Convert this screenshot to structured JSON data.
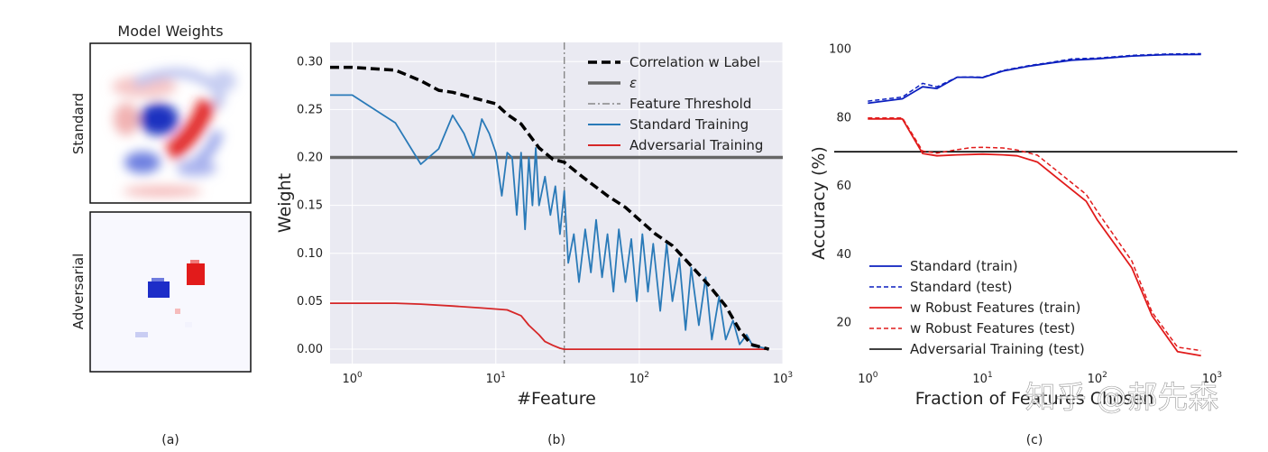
{
  "panel_a": {
    "title": "Model Weights",
    "row_labels": [
      "Standard",
      "Adversarial"
    ],
    "caption": "(a)"
  },
  "panel_b": {
    "caption": "(b)"
  },
  "panel_c": {
    "caption": "(c)"
  },
  "watermark": "知乎 @郝先森",
  "chart_data": [
    {
      "type": "line",
      "title": "",
      "xlabel": "#Feature",
      "ylabel": "Weight",
      "xscale": "log",
      "xlim": [
        0.7,
        1000
      ],
      "ylim": [
        -0.015,
        0.32
      ],
      "xticks": [
        {
          "v": 1,
          "base": "10",
          "exp": "0"
        },
        {
          "v": 10,
          "base": "10",
          "exp": "1"
        },
        {
          "v": 100,
          "base": "10",
          "exp": "2"
        },
        {
          "v": 1000,
          "base": "10",
          "exp": "3"
        }
      ],
      "yticks": [
        0.0,
        0.05,
        0.1,
        0.15,
        0.2,
        0.25,
        0.3
      ],
      "ytick_labels": [
        "0.00",
        "0.05",
        "0.10",
        "0.15",
        "0.20",
        "0.25",
        "0.30"
      ],
      "grid": true,
      "legend_position": "top-right",
      "hline": {
        "name": "ε",
        "y": 0.2,
        "color": "#666666"
      },
      "vline": {
        "name": "Feature Threshold",
        "x": 30,
        "color": "#888888"
      },
      "series": [
        {
          "name": "Correlation w Label",
          "color": "#000000",
          "style": "dashed-thick",
          "x": [
            0.7,
            1,
            2,
            3,
            4,
            5,
            7,
            10,
            12,
            15,
            20,
            25,
            30,
            40,
            60,
            80,
            100,
            130,
            170,
            220,
            300,
            400,
            500,
            600,
            800
          ],
          "y": [
            0.294,
            0.294,
            0.291,
            0.28,
            0.27,
            0.268,
            0.262,
            0.256,
            0.245,
            0.235,
            0.21,
            0.198,
            0.195,
            0.18,
            0.16,
            0.148,
            0.135,
            0.12,
            0.108,
            0.09,
            0.068,
            0.045,
            0.02,
            0.005,
            0.0
          ]
        },
        {
          "name": "Standard Training",
          "color": "#2a7ab8",
          "style": "solid",
          "x": [
            0.7,
            1,
            2,
            3,
            4,
            5,
            6,
            7,
            8,
            9,
            10,
            11,
            12,
            13,
            14,
            15,
            16,
            17,
            18,
            19,
            20,
            22,
            24,
            26,
            28,
            30,
            32,
            35,
            38,
            42,
            46,
            50,
            55,
            60,
            66,
            72,
            80,
            88,
            96,
            105,
            115,
            125,
            140,
            155,
            170,
            190,
            210,
            230,
            260,
            290,
            320,
            360,
            400,
            450,
            500,
            560,
            620,
            700,
            800
          ],
          "y": [
            0.265,
            0.265,
            0.236,
            0.193,
            0.209,
            0.244,
            0.225,
            0.2,
            0.24,
            0.225,
            0.205,
            0.16,
            0.205,
            0.2,
            0.14,
            0.205,
            0.125,
            0.2,
            0.15,
            0.21,
            0.15,
            0.18,
            0.14,
            0.17,
            0.12,
            0.165,
            0.09,
            0.12,
            0.07,
            0.125,
            0.08,
            0.135,
            0.075,
            0.12,
            0.06,
            0.125,
            0.07,
            0.115,
            0.05,
            0.12,
            0.06,
            0.11,
            0.04,
            0.11,
            0.05,
            0.095,
            0.02,
            0.085,
            0.025,
            0.075,
            0.01,
            0.055,
            0.01,
            0.03,
            0.005,
            0.015,
            0.003,
            0.002,
            0.0
          ]
        },
        {
          "name": "Adversarial Training",
          "color": "#d62728",
          "style": "solid",
          "x": [
            0.7,
            1,
            2,
            3,
            5,
            8,
            12,
            15,
            17,
            20,
            22,
            25,
            28,
            30,
            40,
            100,
            300,
            800
          ],
          "y": [
            0.048,
            0.048,
            0.048,
            0.047,
            0.045,
            0.043,
            0.041,
            0.035,
            0.025,
            0.015,
            0.008,
            0.004,
            0.001,
            0.0,
            0.0,
            0.0,
            0.0,
            0.0
          ]
        }
      ]
    },
    {
      "type": "line",
      "title": "",
      "xlabel": "Fraction of Features Chosen",
      "ylabel": "Accuracy (%)",
      "xscale": "log",
      "xlim": [
        0.8,
        1000
      ],
      "ylim": [
        8,
        102
      ],
      "xticks": [
        {
          "v": 1,
          "base": "10",
          "exp": "0"
        },
        {
          "v": 10,
          "base": "10",
          "exp": "1"
        },
        {
          "v": 100,
          "base": "10",
          "exp": "2"
        },
        {
          "v": 1000,
          "base": "10",
          "exp": "3"
        }
      ],
      "yticks": [
        20,
        40,
        60,
        80,
        100
      ],
      "ytick_labels": [
        "20",
        "40",
        "60",
        "80",
        "100"
      ],
      "grid": false,
      "legend_position": "bottom-left",
      "series": [
        {
          "name": "Standard (train)",
          "color": "#0b1fbf",
          "style": "solid",
          "x": [
            1,
            2,
            3,
            4,
            6,
            8,
            10,
            15,
            25,
            40,
            60,
            100,
            200,
            400,
            800
          ],
          "y": [
            84.2,
            85.5,
            89.0,
            88.5,
            91.8,
            91.8,
            91.7,
            93.6,
            95.0,
            96.0,
            96.8,
            97.2,
            98.0,
            98.4,
            98.5
          ]
        },
        {
          "name": "Standard (test)",
          "color": "#0b1fbf",
          "style": "dashed",
          "x": [
            1,
            2,
            3,
            4,
            6,
            8,
            10,
            15,
            25,
            40,
            60,
            100,
            200,
            400,
            800
          ],
          "y": [
            84.8,
            86.0,
            90.0,
            89.0,
            91.8,
            91.9,
            91.8,
            93.8,
            95.2,
            96.2,
            97.2,
            97.4,
            98.2,
            98.6,
            98.7
          ]
        },
        {
          "name": "w Robust Features (train)",
          "color": "#e11b1b",
          "style": "solid",
          "x": [
            1,
            2,
            3,
            4,
            6,
            8,
            10,
            15,
            20,
            30,
            50,
            80,
            100,
            200,
            300,
            500,
            800
          ],
          "y": [
            79.6,
            79.6,
            69.5,
            68.8,
            69.1,
            69.2,
            69.3,
            69.1,
            68.8,
            67.0,
            61.0,
            55.5,
            50.0,
            36.0,
            22.0,
            11.5,
            10.3
          ]
        },
        {
          "name": "w Robust Features (test)",
          "color": "#e11b1b",
          "style": "dashed",
          "x": [
            1,
            2,
            3,
            4,
            6,
            8,
            10,
            15,
            20,
            30,
            50,
            80,
            100,
            200,
            300,
            500,
            800
          ],
          "y": [
            79.9,
            79.9,
            70.2,
            69.6,
            70.6,
            71.2,
            71.3,
            71.1,
            70.5,
            69.0,
            63.0,
            57.5,
            52.5,
            38.0,
            23.0,
            12.8,
            11.8
          ]
        },
        {
          "name": "Adversarial Training (test)",
          "color": "#000000",
          "style": "hline",
          "y_value": 70
        }
      ]
    }
  ]
}
